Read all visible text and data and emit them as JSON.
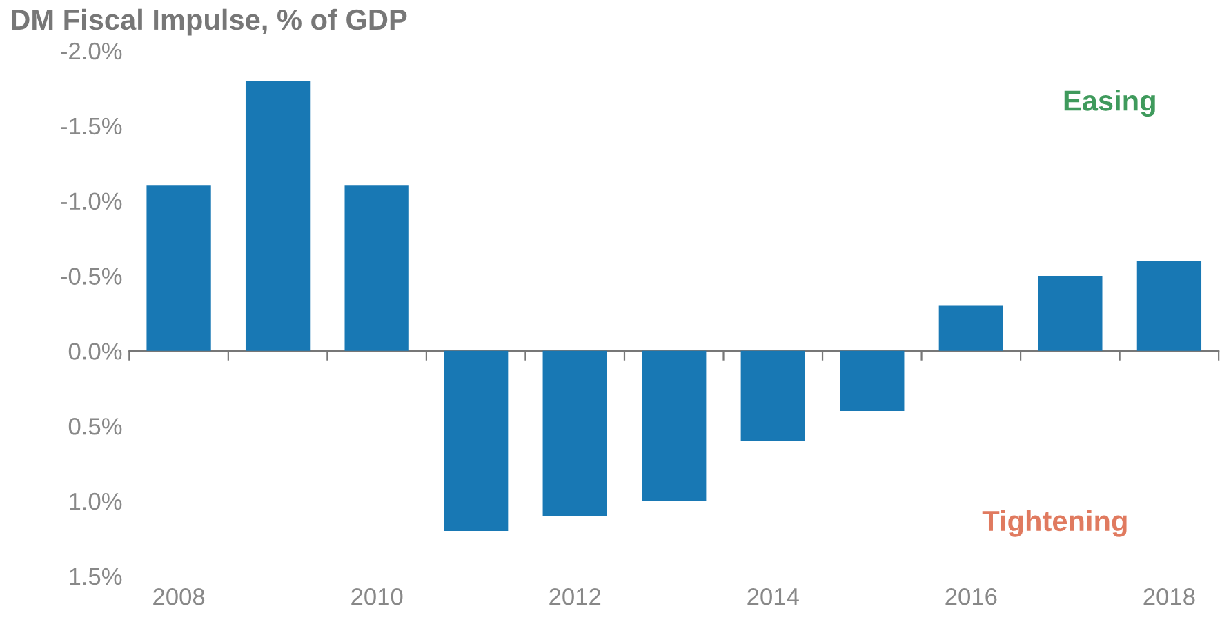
{
  "chart_data": {
    "type": "bar",
    "title": "DM Fiscal Impulse, % of GDP",
    "categories": [
      "2008",
      null,
      "2010",
      null,
      "2012",
      null,
      "2014",
      null,
      "2016",
      null,
      "2018"
    ],
    "values": [
      -1.1,
      -1.8,
      -1.1,
      1.2,
      1.1,
      1.0,
      0.6,
      0.4,
      -0.3,
      -0.5,
      -0.6
    ],
    "color": "#1878b4",
    "ylim": [
      1.5,
      -2.0
    ],
    "yticks": [
      {
        "value": -2.0,
        "label": "-2.0%"
      },
      {
        "value": -1.5,
        "label": "-1.5%"
      },
      {
        "value": -1.0,
        "label": "-1.0%"
      },
      {
        "value": -0.5,
        "label": "-0.5%"
      },
      {
        "value": 0.0,
        "label": "0.0%"
      },
      {
        "value": 0.5,
        "label": "0.5%"
      },
      {
        "value": 1.0,
        "label": "1.0%"
      },
      {
        "value": 1.5,
        "label": "1.5%"
      }
    ],
    "annotations": [
      "Easing",
      "Tightening"
    ]
  }
}
